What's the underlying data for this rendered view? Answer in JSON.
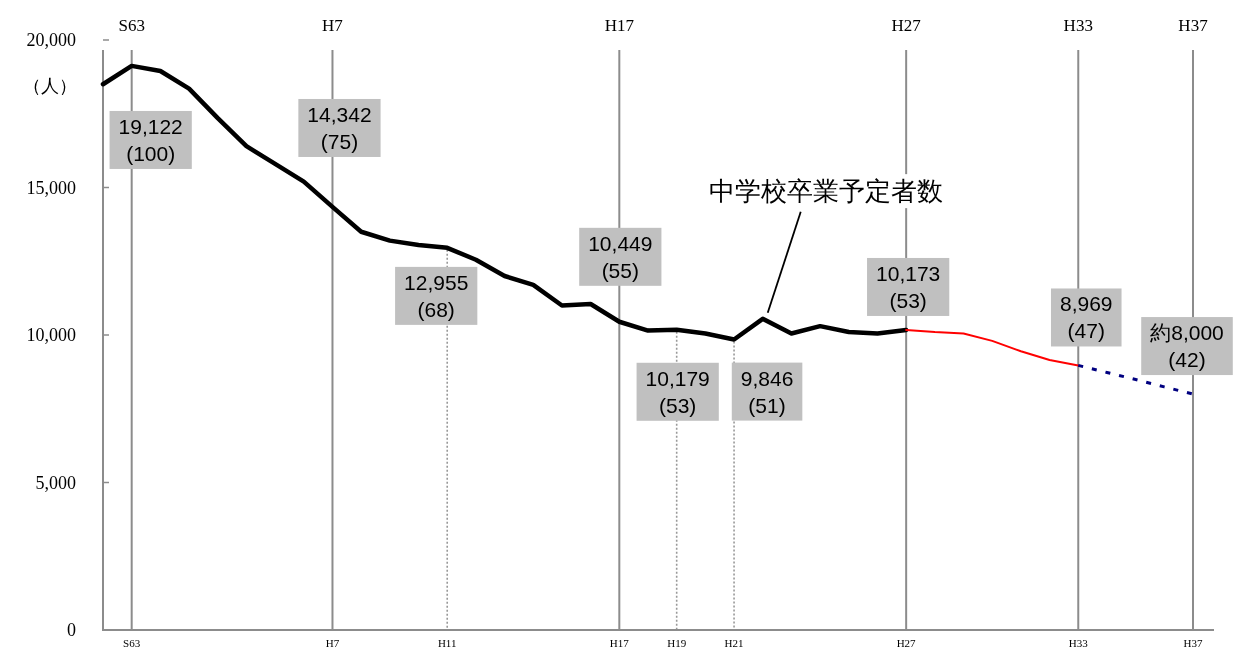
{
  "chart_data": {
    "type": "line",
    "ylabel": "（人）",
    "categories": [
      null,
      "S63",
      null,
      null,
      null,
      null,
      null,
      null,
      "H7",
      null,
      null,
      null,
      "H11",
      null,
      null,
      null,
      null,
      null,
      "H17",
      null,
      "H19",
      null,
      "H21",
      null,
      null,
      null,
      null,
      null,
      "H27",
      null,
      null,
      null,
      null,
      null,
      "H33",
      null,
      null,
      null,
      "H37"
    ],
    "ylim": [
      0,
      20000
    ],
    "yticks": [
      0,
      {
        "value": 5000,
        "label": "5,000"
      },
      {
        "value": 10000,
        "label": "10,000"
      },
      {
        "value": 15000,
        "label": "15,000"
      },
      {
        "value": 20000,
        "label": "20,000"
      }
    ],
    "series": [
      {
        "name": "中学校卒業予定者数",
        "color": "#000000",
        "values": [
          18500,
          19122,
          18950,
          18350,
          17350,
          16400,
          15800,
          15200,
          14342,
          13500,
          13200,
          13050,
          12955,
          12550,
          12000,
          11700,
          11000,
          11050,
          10449,
          10150,
          10179,
          10050,
          9846,
          10550,
          10050,
          10300,
          10100,
          10050,
          10173,
          null,
          null,
          null,
          null,
          null,
          null,
          null,
          null,
          null,
          null
        ]
      },
      {
        "color": "#ff0000",
        "values": [
          null,
          null,
          null,
          null,
          null,
          null,
          null,
          null,
          null,
          null,
          null,
          null,
          null,
          null,
          null,
          null,
          null,
          null,
          null,
          null,
          null,
          null,
          null,
          null,
          null,
          null,
          null,
          null,
          10173,
          10100,
          10050,
          9800,
          9450,
          9150,
          8969,
          null,
          null,
          null,
          null
        ]
      },
      {
        "color": "#000080",
        "line_style": "dotted",
        "values": [
          null,
          null,
          null,
          null,
          null,
          null,
          null,
          null,
          null,
          null,
          null,
          null,
          null,
          null,
          null,
          null,
          null,
          null,
          null,
          null,
          null,
          null,
          null,
          null,
          null,
          null,
          null,
          null,
          null,
          null,
          null,
          null,
          null,
          null,
          8969,
          8730,
          8490,
          8240,
          8000
        ]
      }
    ],
    "ref_lines": [
      {
        "axis": "x",
        "value": "S63",
        "color": "#8c8c8c"
      },
      {
        "axis": "x",
        "value": "H7",
        "color": "#8c8c8c"
      },
      {
        "axis": "x",
        "value": "H17",
        "color": "#8c8c8c"
      },
      {
        "axis": "x",
        "value": "H27",
        "color": "#8c8c8c"
      },
      {
        "axis": "x",
        "value": "H33",
        "color": "#8c8c8c"
      },
      {
        "axis": "x",
        "value": "H37",
        "color": "#8c8c8c"
      },
      {
        "axis": "x",
        "value": "H11",
        "color": "#999999",
        "line_style": "dotted"
      },
      {
        "axis": "x",
        "value": "H19",
        "color": "#999999",
        "line_style": "dotted"
      },
      {
        "axis": "x",
        "value": "H21",
        "color": "#999999",
        "line_style": "dotted"
      }
    ],
    "annotations": [
      {
        "text": "19,122\n(100)",
        "x": "S63",
        "y": 19122
      },
      {
        "text": "14,342\n(75)",
        "x": "H7",
        "y": 14342
      },
      {
        "text": "12,955\n(68)",
        "x": "H11",
        "y": 12955
      },
      {
        "text": "10,449\n(55)",
        "x": "H17",
        "y": 10449
      },
      {
        "text": "10,179\n(53)",
        "x": "H19",
        "y": 10179
      },
      {
        "text": "9,846\n(51)",
        "x": "H21",
        "y": 9846
      },
      {
        "text": "10,173\n(53)",
        "x": "H27",
        "y": 10173
      },
      {
        "text": "8,969\n(47)",
        "x": "H33",
        "y": 8969
      },
      {
        "text": "約8,000\n(42)",
        "x": "H37",
        "y": 8000
      }
    ]
  }
}
